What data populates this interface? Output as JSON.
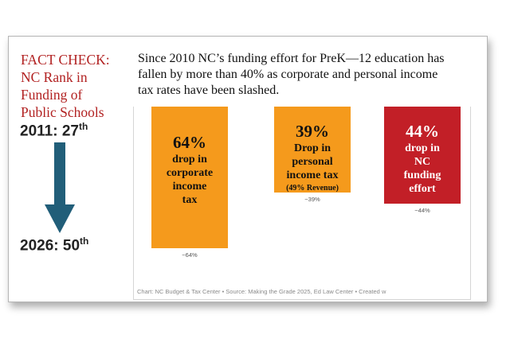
{
  "fact_check": {
    "lines": [
      "FACT CHECK:",
      "NC Rank in",
      "Funding of",
      "Public Schools"
    ],
    "rank_2011_year": "2011: 27",
    "rank_2011_suffix": "th",
    "rank_2026_year": "2026: 50",
    "rank_2026_suffix": "th"
  },
  "headline": {
    "lines": [
      "Since 2010 NC’s funding effort for PreK—12 education has",
      "fallen by more than 40% as corporate and personal income",
      "tax rates have been slashed."
    ]
  },
  "colors": {
    "title_red": "#b22222",
    "orange": "#f59a1c",
    "red": "#c21f27",
    "arrow": "#215e79"
  },
  "icons": {
    "rank_arrow": "down-arrow-icon"
  },
  "chart_data": {
    "type": "bar",
    "categories": [
      "corporate income tax",
      "personal income tax",
      "NC funding effort"
    ],
    "values": [
      -64,
      -39,
      -44
    ],
    "data_labels": [
      "−64%",
      "−39%",
      "−44%"
    ],
    "ylim": [
      -72,
      0
    ],
    "bar_colors": [
      "#f59a1c",
      "#f59a1c",
      "#c21f27"
    ],
    "annotations": [
      {
        "lines": [
          "64%",
          "drop in",
          "corporate",
          "income",
          "tax"
        ],
        "sizes": [
          "big",
          "sm",
          "sm",
          "sm",
          "sm"
        ]
      },
      {
        "lines": [
          "39%",
          "Drop in",
          "personal",
          "income tax",
          "(49% Revenue)"
        ],
        "sizes": [
          "big",
          "sm",
          "sm",
          "sm",
          "xs"
        ]
      },
      {
        "lines": [
          "44%",
          "drop in",
          "NC",
          "funding",
          "effort"
        ],
        "sizes": [
          "big",
          "sm",
          "sm",
          "sm",
          "sm"
        ]
      }
    ],
    "credit": "Chart: NC Budget & Tax Center • Source: Making the Grade 2025, Ed Law Center • Created w"
  }
}
